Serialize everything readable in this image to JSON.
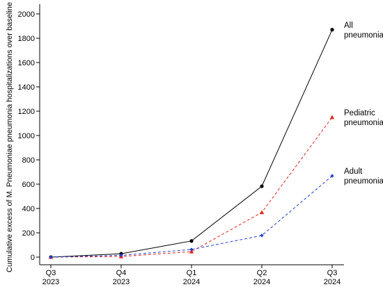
{
  "chart_data": {
    "type": "line",
    "ylabel": "Cumulative excess of M. Pneumoniae pneumonia hospitalizations over baseline",
    "xlabel": "",
    "ylim": [
      0,
      2000
    ],
    "yticks": [
      0,
      200,
      400,
      600,
      800,
      1000,
      1200,
      1400,
      1600,
      1800,
      2000
    ],
    "categories": [
      {
        "top": "Q3",
        "bottom": "2023"
      },
      {
        "top": "Q4",
        "bottom": "2023"
      },
      {
        "top": "Q1",
        "bottom": "2024"
      },
      {
        "top": "Q2",
        "bottom": "2024"
      },
      {
        "top": "Q3",
        "bottom": "2024"
      }
    ],
    "grid": false,
    "legend": "inline labels at right end of each series",
    "series": [
      {
        "name": "All pneumonia",
        "label_lines": [
          "All",
          "pneumonia"
        ],
        "values": [
          0,
          28,
          133,
          583,
          1870
        ],
        "color": "#000000",
        "line_style": "solid",
        "marker": "circle"
      },
      {
        "name": "Pediatric pneumonia",
        "label_lines": [
          "Pediatric",
          "pneumonia"
        ],
        "values": [
          0,
          5,
          45,
          368,
          1150
        ],
        "color": "#e8231a",
        "line_style": "dashed",
        "marker": "triangle"
      },
      {
        "name": "Adult pneumonia",
        "label_lines": [
          "Adult",
          "pneumonia"
        ],
        "values": [
          0,
          15,
          63,
          178,
          668
        ],
        "color": "#1f3fd4",
        "line_style": "dashed",
        "marker": "diamond"
      }
    ]
  }
}
